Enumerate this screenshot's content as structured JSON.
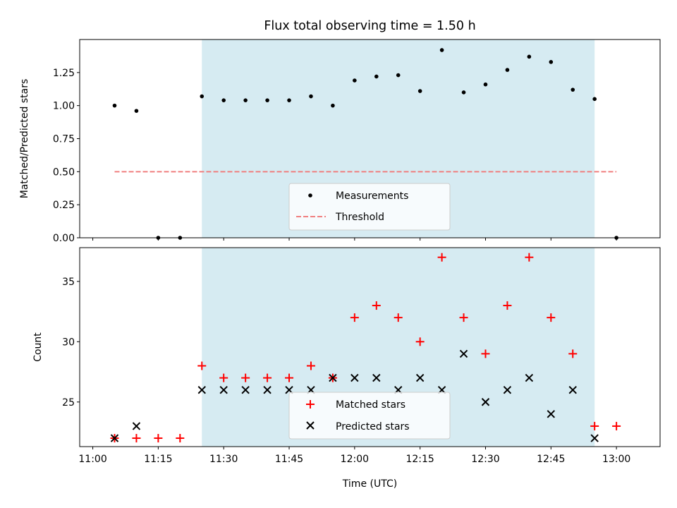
{
  "chart_data": [
    {
      "type": "scatter",
      "title": "Flux total observing time = 1.50 h",
      "ylabel": "Matched/Predicted stars",
      "xlabel": "",
      "xlim": [
        "10:57",
        "13:10"
      ],
      "ylim": [
        0,
        1.5
      ],
      "yticks": [
        0.0,
        0.25,
        0.5,
        0.75,
        1.0,
        1.25
      ],
      "ytick_labels": [
        "0.00",
        "0.25",
        "0.50",
        "0.75",
        "1.00",
        "1.25"
      ],
      "shaded_span": [
        "11:25",
        "12:55"
      ],
      "series": [
        {
          "name": "Measurements",
          "marker": "dot",
          "color": "#000000",
          "x": [
            "11:05",
            "11:10",
            "11:15",
            "11:20",
            "11:25",
            "11:30",
            "11:35",
            "11:40",
            "11:45",
            "11:50",
            "11:55",
            "12:00",
            "12:05",
            "12:10",
            "12:15",
            "12:20",
            "12:25",
            "12:30",
            "12:35",
            "12:40",
            "12:45",
            "12:50",
            "12:55",
            "13:00"
          ],
          "y": [
            1.0,
            0.96,
            0.0,
            0.0,
            1.07,
            1.04,
            1.04,
            1.04,
            1.04,
            1.07,
            1.0,
            1.19,
            1.22,
            1.23,
            1.11,
            1.42,
            1.1,
            1.16,
            1.27,
            1.37,
            1.33,
            1.12,
            1.05,
            0.0
          ]
        },
        {
          "name": "Threshold",
          "marker": "dashed-line",
          "color": "#f08080",
          "x": [
            "11:05",
            "13:00"
          ],
          "y": [
            0.5,
            0.5
          ]
        }
      ],
      "legend": {
        "position": "bottom-center",
        "entries": [
          "Measurements",
          "Threshold"
        ]
      }
    },
    {
      "type": "scatter",
      "title": "",
      "ylabel": "Count",
      "xlabel": "Time (UTC)",
      "xlim": [
        "10:57",
        "13:10"
      ],
      "ylim": [
        21.3,
        37.8
      ],
      "yticks": [
        25,
        30,
        35
      ],
      "ytick_labels": [
        "25",
        "30",
        "35"
      ],
      "xticks": [
        "11:00",
        "11:15",
        "11:30",
        "11:45",
        "12:00",
        "12:15",
        "12:30",
        "12:45",
        "13:00"
      ],
      "shaded_span": [
        "11:25",
        "12:55"
      ],
      "series": [
        {
          "name": "Matched stars",
          "marker": "plus",
          "color": "#ff0000",
          "x": [
            "11:05",
            "11:10",
            "11:15",
            "11:20",
            "11:25",
            "11:30",
            "11:35",
            "11:40",
            "11:45",
            "11:50",
            "11:55",
            "12:00",
            "12:05",
            "12:10",
            "12:15",
            "12:20",
            "12:25",
            "12:30",
            "12:35",
            "12:40",
            "12:45",
            "12:50",
            "12:55",
            "13:00"
          ],
          "y": [
            22,
            22,
            22,
            22,
            28,
            27,
            27,
            27,
            27,
            28,
            27,
            32,
            33,
            32,
            30,
            37,
            32,
            29,
            33,
            37,
            32,
            29,
            23,
            23
          ]
        },
        {
          "name": "Predicted stars",
          "marker": "x",
          "color": "#000000",
          "x": [
            "11:05",
            "11:10",
            "11:25",
            "11:30",
            "11:35",
            "11:40",
            "11:45",
            "11:50",
            "11:55",
            "12:00",
            "12:05",
            "12:10",
            "12:15",
            "12:20",
            "12:25",
            "12:30",
            "12:35",
            "12:40",
            "12:45",
            "12:50",
            "12:55"
          ],
          "y": [
            22,
            23,
            26,
            26,
            26,
            26,
            26,
            26,
            27,
            27,
            27,
            26,
            27,
            26,
            29,
            25,
            26,
            27,
            24,
            26,
            22
          ]
        }
      ],
      "legend": {
        "position": "bottom-center",
        "entries": [
          "Matched stars",
          "Predicted stars"
        ]
      }
    }
  ]
}
